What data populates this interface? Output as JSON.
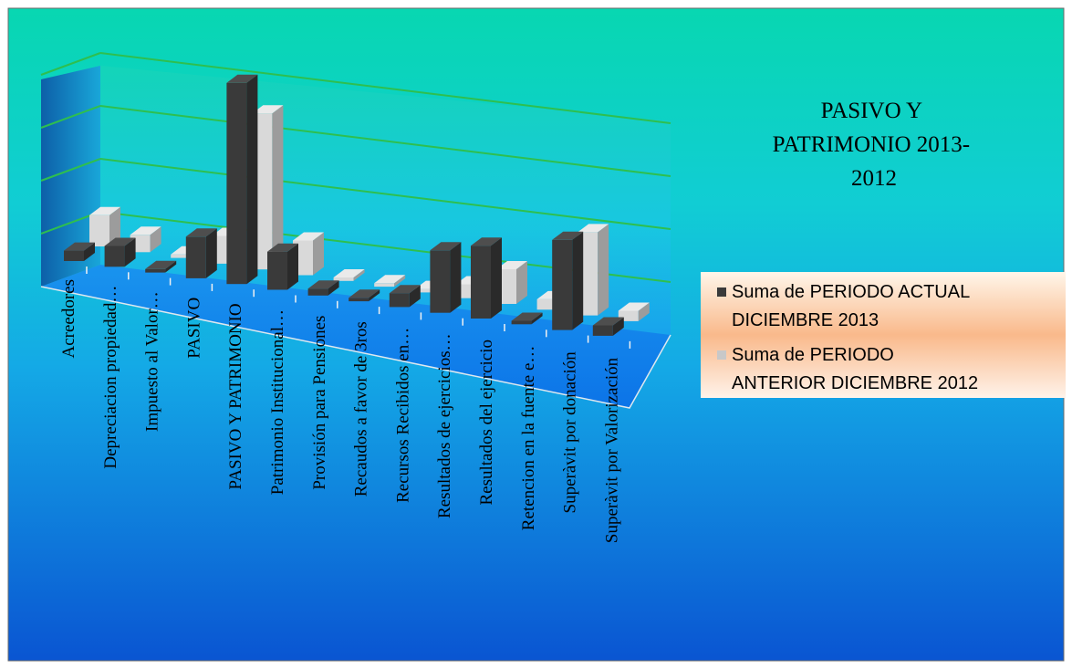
{
  "chart_data": {
    "type": "bar",
    "style": "3d-clustered-column",
    "title": "PASIVO Y PATRIMONIO 2013-2012",
    "title_lines": [
      "PASIVO Y",
      "PATRIMONIO 2013-",
      "2012"
    ],
    "categories": [
      "Acreedores",
      "Depreciacion propiedad…",
      "Impuesto al Valor…",
      "PASIVO",
      "PASIVO Y PATRIMONIO",
      "Patrimonio Institucional…",
      "Provisión para Pensiones",
      "Recaudos a favor de 3ros",
      "Recursos Recibidos en…",
      "Resultados de ejercicios…",
      "Resultados del ejercicio",
      "Retencion en la fuente e…",
      "Superàvit por donación",
      "Superàvit por Valorización"
    ],
    "series": [
      {
        "name": "Suma de PERIODO ACTUAL DICIEMBRE 2013",
        "color": "#3a3a3a",
        "values": [
          0.3,
          0.6,
          0.1,
          1.2,
          5.8,
          1.1,
          0.2,
          0.1,
          0.4,
          1.8,
          2.1,
          0.1,
          2.6,
          0.3
        ]
      },
      {
        "name": "Suma de PERIODO ANTERIOR DICIEMBRE 2012",
        "color": "#d9d9d9",
        "values": [
          0.9,
          0.5,
          0.1,
          0.8,
          4.5,
          1.0,
          0.1,
          0.1,
          0.1,
          0.4,
          1.0,
          0.3,
          2.4,
          0.3
        ]
      }
    ],
    "ylim": [
      0,
      6
    ],
    "grid": true,
    "legend_position": "right",
    "legend_lines": [
      [
        "Suma de PERIODO ACTUAL",
        "DICIEMBRE 2013"
      ],
      [
        "Suma de PERIODO",
        "ANTERIOR DICIEMBRE 2012"
      ]
    ],
    "colors": {
      "background_top": "#08d7b1",
      "background_mid": "#1bb6e0",
      "background_bottom": "#0a5fd6",
      "gridline": "#2ebf4f"
    }
  }
}
